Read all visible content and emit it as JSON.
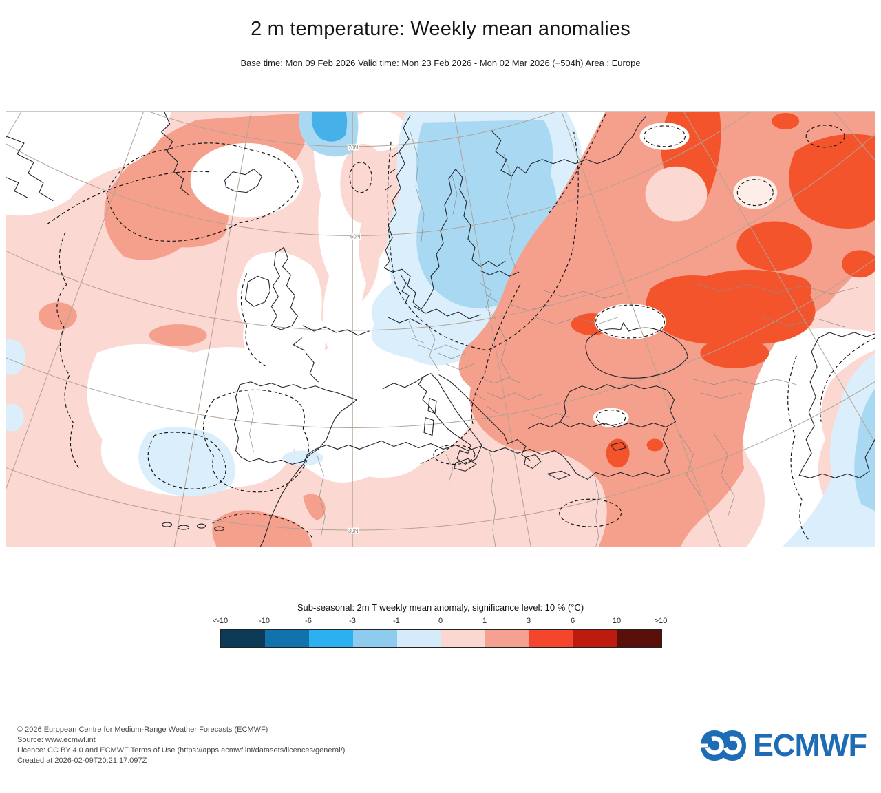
{
  "header": {
    "title": "2 m temperature: Weekly mean anomalies",
    "subtitle": "Base time: Mon 09 Feb 2026 Valid time: Mon 23 Feb 2026 - Mon 02 Mar 2026 (+504h) Area : Europe"
  },
  "map": {
    "graticule_labels": [
      "70N",
      "60N",
      "30N"
    ],
    "anomaly_colors": {
      "pink_0_1": "#fbd9d2",
      "salmon_1_3": "#f5a08c",
      "orange_3_6": "#f4542c",
      "lightblue_m1_0": "#daeefb",
      "midblue_m3_m1": "#a9d8f3",
      "brightblue_m6_m3": "#45b1e8"
    }
  },
  "legend": {
    "title": "Sub-seasonal: 2m T weekly mean anomaly, significance level: 10 % (°C)",
    "tick_labels": [
      "<-10",
      "-10",
      "-6",
      "-3",
      "-1",
      "0",
      "1",
      "3",
      "6",
      "10",
      ">10"
    ],
    "colors": [
      "#0d3a56",
      "#1272ac",
      "#2cb0f0",
      "#8fcbee",
      "#d6ebfa",
      "#fad7d0",
      "#f5a191",
      "#f4462c",
      "#be1b10",
      "#5a100a"
    ]
  },
  "footer": {
    "lines": [
      "© 2026 European Centre for Medium-Range Weather Forecasts (ECMWF)",
      "Source: www.ecmwf.int",
      "Licence: CC BY 4.0 and ECMWF Terms of Use (https://apps.ecmwf.int/datasets/licences/general/)",
      "Created at 2026-02-09T20:21:17.097Z"
    ]
  },
  "logo": {
    "text": "ECMWF",
    "color": "#1e6cb5"
  }
}
